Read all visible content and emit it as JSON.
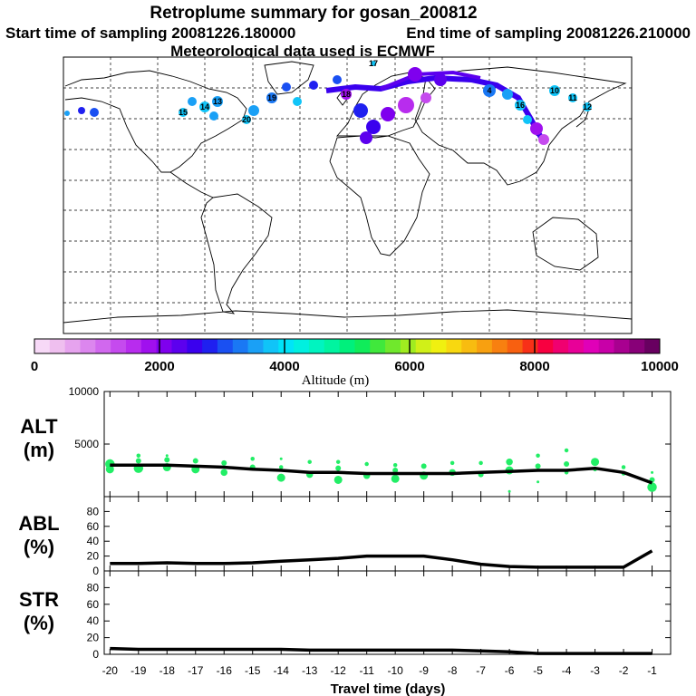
{
  "header": {
    "title": "Retroplume summary for gosan_200812",
    "start_label": "Start time of sampling 20081226.180000",
    "end_label": "End time of sampling 20081226.210000",
    "met_label": "Meteorological data used is ECMWF"
  },
  "map": {
    "plume_labels": [
      "4",
      "10",
      "11",
      "12",
      "13",
      "14",
      "15",
      "16",
      "17",
      "18",
      "19",
      "20"
    ]
  },
  "colorbar": {
    "colors": [
      "#f7d9f7",
      "#efbfef",
      "#e6a3ee",
      "#dc86ee",
      "#d168ee",
      "#c54aee",
      "#b82cee",
      "#a010ee",
      "#7f00ee",
      "#5c00ee",
      "#3a00ee",
      "#1f20f0",
      "#1a50f2",
      "#1a78f4",
      "#1aa0f6",
      "#10c4f8",
      "#00e4f8",
      "#00f0e0",
      "#00f4c0",
      "#00f4a0",
      "#00f07c",
      "#10ec5a",
      "#40e83c",
      "#70e82c",
      "#a0ec20",
      "#d0f018",
      "#f0f010",
      "#f8d810",
      "#f8bc10",
      "#f8a010",
      "#f88010",
      "#f86010",
      "#f83018",
      "#f80040",
      "#f00070",
      "#e80098",
      "#e000b8",
      "#c800a8",
      "#a80090",
      "#880078",
      "#680060"
    ],
    "ticks": [
      0,
      2000,
      4000,
      6000,
      8000,
      10000
    ],
    "tick_labels": [
      "0",
      "2000",
      "4000",
      "6000",
      "8000",
      "10000"
    ],
    "label": "Altitude (m)"
  },
  "chart_data": [
    {
      "type": "line",
      "panel": "ALT",
      "ylabel": "ALT",
      "yunit": "(m)",
      "ylim": [
        0,
        10000
      ],
      "yticks": [
        5000,
        10000
      ],
      "ytick_labels": [
        "5000",
        "10000"
      ],
      "x": [
        -20,
        -19,
        -18,
        -17,
        -16,
        -15,
        -14,
        -13,
        -12,
        -11,
        -10,
        -9,
        -8,
        -7,
        -6,
        -5,
        -4,
        -3,
        -2,
        -1
      ],
      "mean": [
        3000,
        3000,
        3000,
        2900,
        2800,
        2600,
        2500,
        2300,
        2300,
        2200,
        2200,
        2200,
        2200,
        2300,
        2400,
        2500,
        2500,
        2700,
        2300,
        1300
      ],
      "cluster_points": [
        {
          "x": -20,
          "y": 3100,
          "s": 7
        },
        {
          "x": -20,
          "y": 2600,
          "s": 6
        },
        {
          "x": -20,
          "y": 3300,
          "s": 4
        },
        {
          "x": -19,
          "y": 2700,
          "s": 7
        },
        {
          "x": -19,
          "y": 3400,
          "s": 4
        },
        {
          "x": -19,
          "y": 3900,
          "s": 3
        },
        {
          "x": -18,
          "y": 2800,
          "s": 6
        },
        {
          "x": -18,
          "y": 3500,
          "s": 4
        },
        {
          "x": -18,
          "y": 3900,
          "s": 2
        },
        {
          "x": -17,
          "y": 2600,
          "s": 6
        },
        {
          "x": -17,
          "y": 3400,
          "s": 4
        },
        {
          "x": -16,
          "y": 2300,
          "s": 5
        },
        {
          "x": -16,
          "y": 3200,
          "s": 4
        },
        {
          "x": -15,
          "y": 2800,
          "s": 4
        },
        {
          "x": -15,
          "y": 3600,
          "s": 3
        },
        {
          "x": -14,
          "y": 1800,
          "s": 6
        },
        {
          "x": -14,
          "y": 2800,
          "s": 3
        },
        {
          "x": -14,
          "y": 3600,
          "s": 2
        },
        {
          "x": -13,
          "y": 2100,
          "s": 5
        },
        {
          "x": -13,
          "y": 3300,
          "s": 3
        },
        {
          "x": -12,
          "y": 1600,
          "s": 6
        },
        {
          "x": -12,
          "y": 2700,
          "s": 4
        },
        {
          "x": -12,
          "y": 3300,
          "s": 3
        },
        {
          "x": -11,
          "y": 2000,
          "s": 5
        },
        {
          "x": -11,
          "y": 3100,
          "s": 3
        },
        {
          "x": -10,
          "y": 1700,
          "s": 6
        },
        {
          "x": -10,
          "y": 2500,
          "s": 4
        },
        {
          "x": -10,
          "y": 3000,
          "s": 3
        },
        {
          "x": -9,
          "y": 2000,
          "s": 6
        },
        {
          "x": -9,
          "y": 2900,
          "s": 4
        },
        {
          "x": -8,
          "y": 2300,
          "s": 5
        },
        {
          "x": -8,
          "y": 3200,
          "s": 3
        },
        {
          "x": -7,
          "y": 2100,
          "s": 4
        },
        {
          "x": -7,
          "y": 3200,
          "s": 3
        },
        {
          "x": -6,
          "y": 2500,
          "s": 6
        },
        {
          "x": -6,
          "y": 3300,
          "s": 5
        },
        {
          "x": -6,
          "y": 500,
          "s": 2
        },
        {
          "x": -5,
          "y": 1400,
          "s": 2
        },
        {
          "x": -5,
          "y": 2900,
          "s": 4
        },
        {
          "x": -5,
          "y": 3900,
          "s": 3
        },
        {
          "x": -4,
          "y": 2300,
          "s": 3
        },
        {
          "x": -4,
          "y": 3100,
          "s": 4
        },
        {
          "x": -4,
          "y": 4400,
          "s": 3
        },
        {
          "x": -3,
          "y": 3300,
          "s": 6
        },
        {
          "x": -3,
          "y": 2600,
          "s": 3
        },
        {
          "x": -2,
          "y": 2800,
          "s": 3
        },
        {
          "x": -2,
          "y": 2200,
          "s": 3
        },
        {
          "x": -1,
          "y": 900,
          "s": 7
        },
        {
          "x": -1,
          "y": 1600,
          "s": 4
        },
        {
          "x": -1,
          "y": 2300,
          "s": 2
        }
      ]
    },
    {
      "type": "line",
      "panel": "ABL",
      "ylabel": "ABL",
      "yunit": "(%)",
      "ylim": [
        0,
        100
      ],
      "yticks": [
        0,
        20,
        40,
        60,
        80
      ],
      "ytick_labels": [
        "0",
        "20",
        "40",
        "60",
        "80"
      ],
      "x": [
        -20,
        -19,
        -18,
        -17,
        -16,
        -15,
        -14,
        -13,
        -12,
        -11,
        -10,
        -9,
        -8,
        -7,
        -6,
        -5,
        -4,
        -3,
        -2,
        -1
      ],
      "values": [
        10,
        10,
        11,
        10,
        10,
        11,
        13,
        15,
        17,
        20,
        20,
        20,
        15,
        9,
        6,
        5,
        5,
        5,
        5,
        27
      ]
    },
    {
      "type": "line",
      "panel": "STR",
      "ylabel": "STR",
      "yunit": "(%)",
      "ylim": [
        0,
        100
      ],
      "yticks": [
        0,
        20,
        40,
        60,
        80
      ],
      "ytick_labels": [
        "0",
        "20",
        "40",
        "60",
        "80"
      ],
      "x": [
        -20,
        -19,
        -18,
        -17,
        -16,
        -15,
        -14,
        -13,
        -12,
        -11,
        -10,
        -9,
        -8,
        -7,
        -6,
        -5,
        -4,
        -3,
        -2,
        -1
      ],
      "values": [
        7,
        6,
        6,
        6,
        6,
        6,
        6,
        5,
        5,
        5,
        5,
        5,
        5,
        4,
        3,
        1,
        1,
        1,
        1,
        1
      ],
      "xlabel": "Travel time (days)",
      "xtick_labels": [
        "-20",
        "-19",
        "-18",
        "-17",
        "-16",
        "-15",
        "-14",
        "-13",
        "-12",
        "-11",
        "-10",
        "-9",
        "-8",
        "-7",
        "-6",
        "-5",
        "-4",
        "-3",
        "-2",
        "-1"
      ]
    }
  ]
}
